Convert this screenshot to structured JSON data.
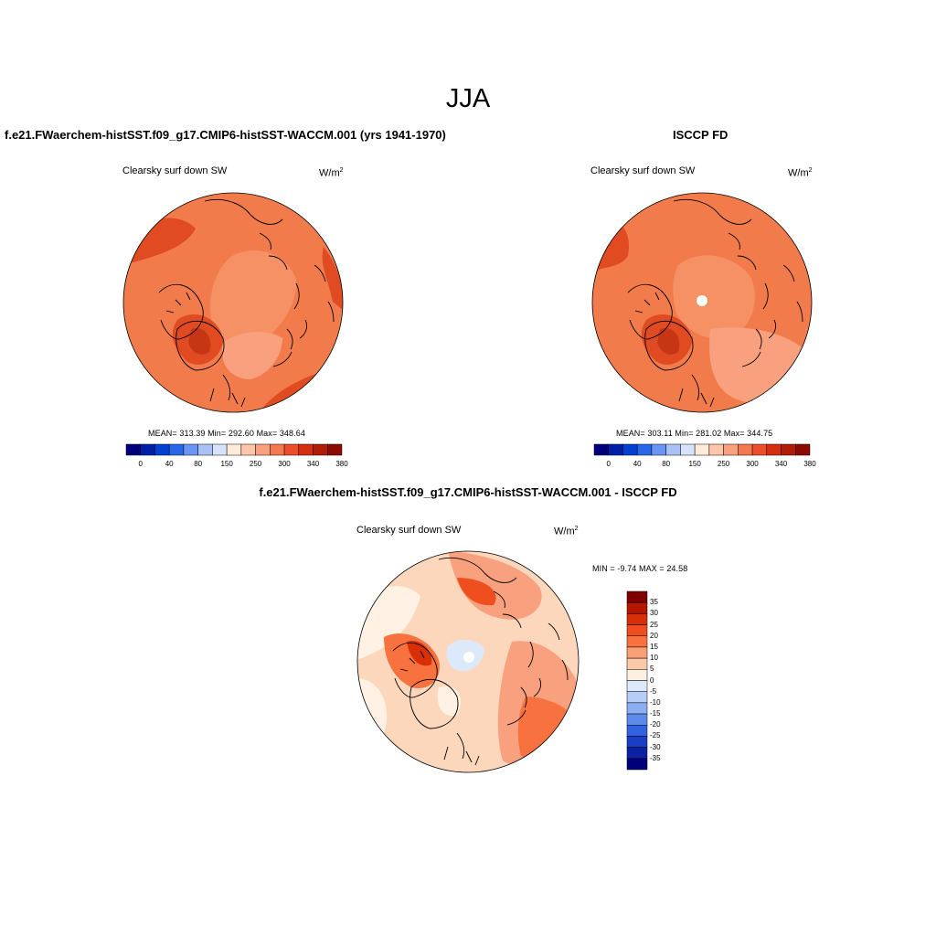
{
  "season": "JJA",
  "panels": {
    "model": {
      "title": "f.e21.FWaerchem-histSST.f09_g17.CMIP6-histSST-WACCM.001 (yrs 1941-1970)",
      "variable": "Clearsky surf down SW",
      "units_base": "W/m",
      "units_exp": "2",
      "stats": "MEAN= 313.39  Min= 292.60  Max= 348.64"
    },
    "obs": {
      "title": "ISCCP FD",
      "variable": "Clearsky surf down SW",
      "units_base": "W/m",
      "units_exp": "2",
      "stats": "MEAN= 303.11  Min= 281.02  Max= 344.75"
    },
    "diff": {
      "title": "f.e21.FWaerchem-histSST.f09_g17.CMIP6-histSST-WACCM.001 - ISCCP FD",
      "variable": "Clearsky surf down SW",
      "units_base": "W/m",
      "units_exp": "2",
      "stats": "MIN =  -9.74 MAX =  24.58"
    }
  },
  "abs_colorbar": {
    "colors": [
      "#00007d",
      "#0020a8",
      "#0040d0",
      "#2a66e8",
      "#6c94f2",
      "#a9c2f6",
      "#d4e2fb",
      "#ffebd9",
      "#fcc7a8",
      "#f9a07e",
      "#f47850",
      "#ea4f2a",
      "#d52e10",
      "#b01c06",
      "#8b0b00"
    ],
    "tick_labels": [
      "0",
      "40",
      "80",
      "150",
      "250",
      "300",
      "340",
      "380"
    ]
  },
  "diff_colorbar": {
    "colors": [
      "#7e0000",
      "#b41700",
      "#d82f08",
      "#ef4f1e",
      "#f7723e",
      "#f9a077",
      "#fdc9a6",
      "#fef0e1",
      "#dce9fb",
      "#b6cdf8",
      "#8caef3",
      "#5e8aec",
      "#3162df",
      "#1a3fc4",
      "#0c20a3",
      "#000077"
    ],
    "tick_labels": [
      "35",
      "30",
      "25",
      "20",
      "15",
      "10",
      "5",
      "0",
      "-5",
      "-10",
      "-15",
      "-20",
      "-25",
      "-30",
      "-35"
    ]
  },
  "map_colors": {
    "ocean_base": "#f27b4c",
    "dark_red": "#e04b22",
    "darker_red": "#c63615",
    "light_salmon": "#f9a07e",
    "pale_peach": "#fcd2b4",
    "cream": "#fff1e4",
    "light_blue": "#d7e6fb",
    "coast": "#000000"
  }
}
